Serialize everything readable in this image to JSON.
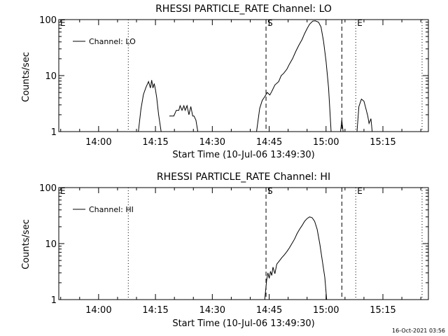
{
  "footer": {
    "timestamp": "16-Oct-2021 03:56"
  },
  "chart_data": [
    {
      "type": "line",
      "title": "RHESSI PARTICLE_RATE Channel: LO",
      "xlabel": "Start Time (10-Jul-06 13:49:30)",
      "ylabel": "Counts/sec",
      "y_scale": "log",
      "ylim": [
        1,
        100
      ],
      "xlim": [
        "13:49:30",
        "15:27:00"
      ],
      "x_tick_labels": [
        "14:00",
        "14:15",
        "14:30",
        "14:45",
        "15:00",
        "15:15"
      ],
      "x_ticks": [
        "14:00",
        "14:15",
        "14:30",
        "14:45",
        "15:00",
        "15:15"
      ],
      "y_tick_labels": [
        "1",
        "10",
        "100"
      ],
      "y_ticks": [
        1,
        10,
        100
      ],
      "legend": {
        "placement": "top-left",
        "label": "Channel: LO"
      },
      "markers": [
        {
          "label": "E",
          "time": "13:49:30",
          "style": "none"
        },
        {
          "label": "",
          "time": "14:07:50",
          "style": "dotted"
        },
        {
          "label": "S",
          "time": "14:44:10",
          "style": "dashed"
        },
        {
          "label": "",
          "time": "15:04:10",
          "style": "dashed"
        },
        {
          "label": "E",
          "time": "15:07:50",
          "style": "dotted"
        },
        {
          "label": "",
          "time": "15:25:20",
          "style": "dotted"
        }
      ],
      "series": [
        {
          "name": "Channel: LO",
          "segments": [
            {
              "times": [
                "14:10:30",
                "14:11:10",
                "14:11:50",
                "14:12:30",
                "14:13:10",
                "14:13:40",
                "14:14:00",
                "14:14:20",
                "14:14:40",
                "14:15:00",
                "14:15:20",
                "14:15:50",
                "14:16:30"
              ],
              "values": [
                1,
                2.5,
                4.6,
                6.2,
                7.8,
                6.0,
                8.3,
                6.0,
                7.2,
                5.6,
                4.0,
                2.0,
                1
              ]
            },
            {
              "times": [
                "14:18:40",
                "14:19:50",
                "14:20:30",
                "14:21:10",
                "14:21:30",
                "14:22:00",
                "14:22:30",
                "14:22:50",
                "14:23:20",
                "14:23:50",
                "14:24:20",
                "14:24:50",
                "14:25:10",
                "14:25:40",
                "14:26:10"
              ],
              "values": [
                1.9,
                1.9,
                2.4,
                2.4,
                2.9,
                2.4,
                2.9,
                2.4,
                2.9,
                2.0,
                2.8,
                1.9,
                1.9,
                1.6,
                1
              ]
            },
            {
              "times": [
                "14:41:40",
                "14:42:30",
                "14:43:10",
                "14:43:50",
                "14:44:30",
                "14:45:10",
                "14:45:40",
                "14:46:30",
                "14:47:30",
                "14:48:10",
                "14:48:50",
                "14:49:40",
                "14:50:20",
                "14:51:10",
                "14:52:00",
                "14:52:50",
                "14:53:40",
                "14:54:20",
                "14:55:00",
                "14:55:40",
                "14:56:30",
                "14:57:10",
                "14:58:00",
                "14:58:40",
                "14:59:20",
                "15:00:00",
                "15:00:40",
                "15:01:20"
              ],
              "values": [
                1,
                2.6,
                3.6,
                4.2,
                5.0,
                4.5,
                5.2,
                6.8,
                7.8,
                10,
                11,
                13,
                16,
                20,
                27,
                35,
                44,
                56,
                69,
                83,
                94,
                95,
                90,
                74,
                41,
                18,
                6,
                1
              ]
            },
            {
              "times": [
                "15:03:50",
                "15:04:10",
                "15:04:30"
              ],
              "values": [
                1,
                1.6,
                1
              ]
            },
            {
              "times": [
                "15:08:10",
                "15:08:40",
                "15:09:20",
                "15:10:00",
                "15:10:30",
                "15:11:00",
                "15:11:20",
                "15:11:50",
                "15:12:10"
              ],
              "values": [
                1,
                2.8,
                3.8,
                3.5,
                2.6,
                1.9,
                1.4,
                1.7,
                1
              ]
            }
          ]
        }
      ]
    },
    {
      "type": "line",
      "title": "RHESSI PARTICLE_RATE Channel: HI",
      "xlabel": "Start Time (10-Jul-06 13:49:30)",
      "ylabel": "Counts/sec",
      "y_scale": "log",
      "ylim": [
        1,
        100
      ],
      "xlim": [
        "13:49:30",
        "15:27:00"
      ],
      "x_tick_labels": [
        "14:00",
        "14:15",
        "14:30",
        "14:45",
        "15:00",
        "15:15"
      ],
      "x_ticks": [
        "14:00",
        "14:15",
        "14:30",
        "14:45",
        "15:00",
        "15:15"
      ],
      "y_tick_labels": [
        "1",
        "10",
        "100"
      ],
      "y_ticks": [
        1,
        10,
        100
      ],
      "legend": {
        "placement": "top-left",
        "label": "Channel: HI"
      },
      "markers": [
        {
          "label": "E",
          "time": "13:49:30",
          "style": "none"
        },
        {
          "label": "",
          "time": "14:07:50",
          "style": "dotted"
        },
        {
          "label": "S",
          "time": "14:44:10",
          "style": "dashed"
        },
        {
          "label": "",
          "time": "15:04:10",
          "style": "dashed"
        },
        {
          "label": "E",
          "time": "15:07:50",
          "style": "dotted"
        },
        {
          "label": "",
          "time": "15:25:20",
          "style": "dotted"
        }
      ],
      "series": [
        {
          "name": "Channel: HI",
          "segments": [
            {
              "times": [
                "14:43:50",
                "14:44:20",
                "14:44:40",
                "14:45:00",
                "14:45:20",
                "14:45:40",
                "14:46:00",
                "14:46:30",
                "14:47:00",
                "14:47:40",
                "14:48:20",
                "14:49:00",
                "14:49:40",
                "14:50:20",
                "14:51:00",
                "14:51:40",
                "14:52:20",
                "14:53:00",
                "14:53:40",
                "14:54:20",
                "14:55:00",
                "14:55:40",
                "14:56:20",
                "14:57:00",
                "14:57:40",
                "14:58:20",
                "14:59:00",
                "14:59:40",
                "15:00:10"
              ],
              "values": [
                1,
                2.2,
                3.0,
                2.4,
                3.2,
                2.7,
                3.8,
                2.9,
                4.3,
                4.9,
                5.6,
                6.3,
                7.2,
                8.4,
                10,
                12,
                15,
                18,
                21,
                25,
                28,
                30,
                29,
                25,
                18,
                10,
                5,
                2.5,
                1
              ]
            }
          ]
        }
      ]
    }
  ]
}
